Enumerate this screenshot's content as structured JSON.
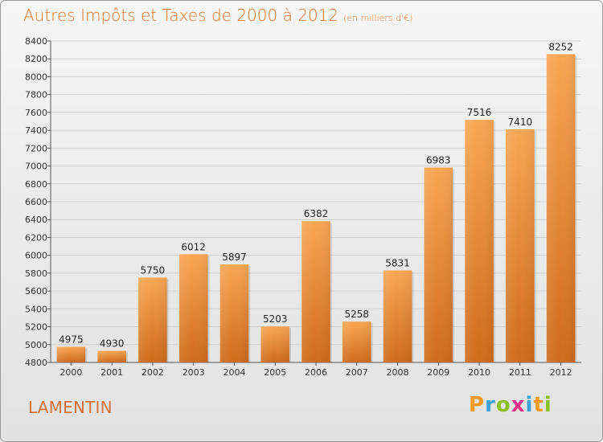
{
  "header": {
    "title": "Autres Impôts et Taxes de 2000 à 2012",
    "unit": "(en milliers d'€)"
  },
  "footer": {
    "commune": "LAMENTIN",
    "logo_letters": [
      "P",
      "r",
      "o",
      "x",
      "i",
      "t",
      "i"
    ],
    "logo_colors": [
      "#f29a1e",
      "#3aa0d8",
      "#8cbf26",
      "#e4328a",
      "#3aa0d8",
      "#f29a1e",
      "#8cbf26"
    ]
  },
  "colors": {
    "title": "#e0741f",
    "bar_top": "#f8a653",
    "bar_bottom": "#cf6a1a",
    "grid": "#cfcfcf"
  },
  "chart_data": {
    "type": "bar",
    "categories": [
      "2000",
      "2001",
      "2002",
      "2003",
      "2004",
      "2005",
      "2006",
      "2007",
      "2008",
      "2009",
      "2010",
      "2011",
      "2012"
    ],
    "values": [
      4975,
      4930,
      5750,
      6012,
      5897,
      5203,
      6382,
      5258,
      5831,
      6983,
      7516,
      7410,
      8252
    ],
    "data_labels": [
      "4975",
      "4930",
      "5750",
      "6012",
      "5897",
      "5203",
      "6382",
      "5258",
      "5831",
      "6983",
      "7516",
      "7410",
      "8252"
    ],
    "ylim": [
      4800,
      8400
    ],
    "ytick_step": 200,
    "grid": true,
    "title": "Autres Impôts et Taxes de 2000 à 2012",
    "xlabel": "",
    "ylabel": ""
  }
}
